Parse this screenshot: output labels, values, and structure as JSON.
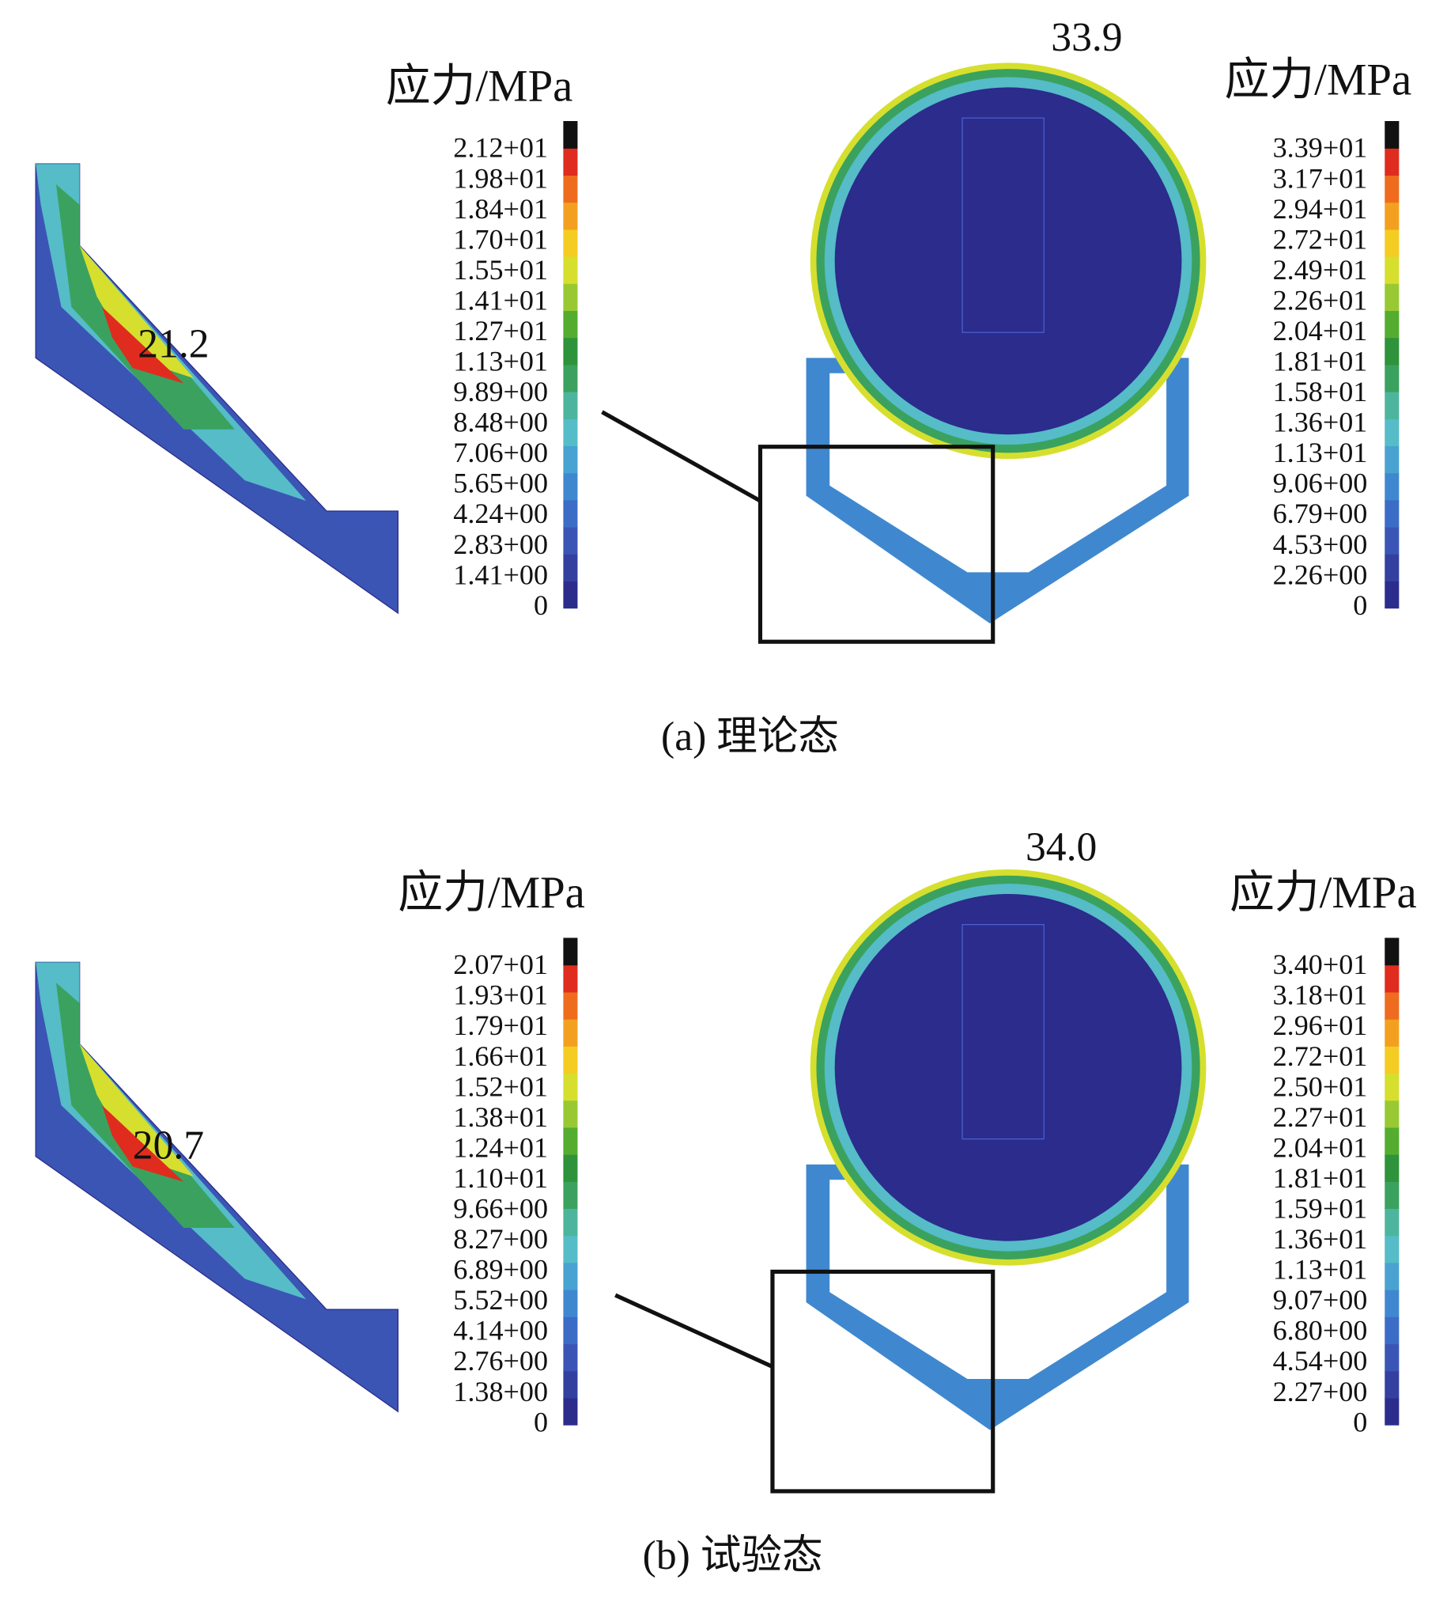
{
  "panels": [
    {
      "detail": {
        "peak": "21.2",
        "legend_title": "应力/MPa",
        "legend_labels": [
          "2.12+01",
          "1.98+01",
          "1.84+01",
          "1.70+01",
          "1.55+01",
          "1.41+01",
          "1.27+01",
          "1.13+01",
          "9.89+00",
          "8.48+00",
          "7.06+00",
          "5.65+00",
          "4.24+00",
          "2.83+00",
          "1.41+00",
          "0"
        ]
      },
      "full": {
        "peak": "33.9",
        "legend_title": "应力/MPa",
        "legend_labels": [
          "3.39+01",
          "3.17+01",
          "2.94+01",
          "2.72+01",
          "2.49+01",
          "2.26+01",
          "2.04+01",
          "1.81+01",
          "1.58+01",
          "1.36+01",
          "1.13+01",
          "9.06+00",
          "6.79+00",
          "4.53+00",
          "2.26+00",
          "0"
        ]
      },
      "caption": "(a) 理论态"
    },
    {
      "detail": {
        "peak": "20.7",
        "legend_title": "应力/MPa",
        "legend_labels": [
          "2.07+01",
          "1.93+01",
          "1.79+01",
          "1.66+01",
          "1.52+01",
          "1.38+01",
          "1.24+01",
          "1.10+01",
          "9.66+00",
          "8.27+00",
          "6.89+00",
          "5.52+00",
          "4.14+00",
          "2.76+00",
          "1.38+00",
          "0"
        ]
      },
      "full": {
        "peak": "34.0",
        "legend_title": "应力/MPa",
        "legend_labels": [
          "3.40+01",
          "3.18+01",
          "2.96+01",
          "2.72+01",
          "2.50+01",
          "2.27+01",
          "2.04+01",
          "1.81+01",
          "1.59+01",
          "1.36+01",
          "1.13+01",
          "9.07+00",
          "6.80+00",
          "4.54+00",
          "2.27+00",
          "0"
        ]
      },
      "caption": "(b) 试验态"
    }
  ],
  "legend_colors": [
    "#2b2c8c",
    "#33409f",
    "#3a55b5",
    "#3b6cc6",
    "#3f88d0",
    "#48a2d2",
    "#55bcc8",
    "#4db59d",
    "#3aa25e",
    "#2e933a",
    "#55ad2f",
    "#99c932",
    "#d6df2e",
    "#f4cc22",
    "#f3a020",
    "#ef6c1f",
    "#df2c1e",
    "#111111"
  ]
}
